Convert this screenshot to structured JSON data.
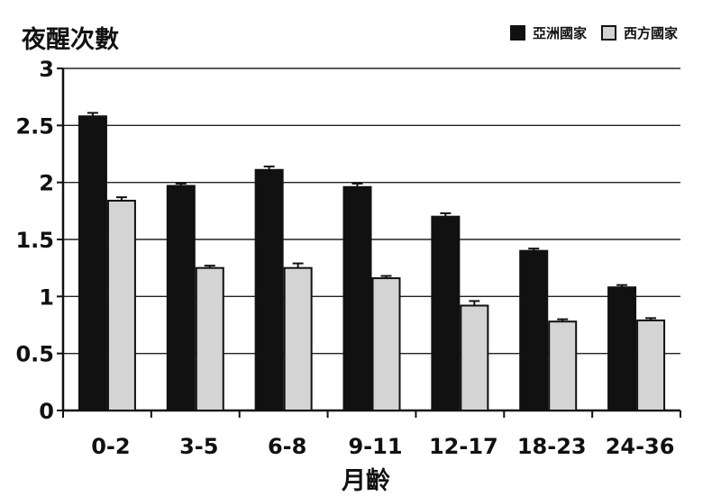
{
  "chart_data": {
    "type": "bar",
    "ylabel": "夜醒次數",
    "xlabel": "月齡",
    "categories": [
      "0-2",
      "3-5",
      "6-8",
      "9-11",
      "12-17",
      "18-23",
      "24-36"
    ],
    "ylim": [
      0,
      3
    ],
    "yticks": [
      "0",
      "0.5",
      "1",
      "1.5",
      "2",
      "2.5",
      "3"
    ],
    "grid": true,
    "legend_position": "top-right",
    "series": [
      {
        "name": "亞洲國家",
        "color": "#111111",
        "values": [
          2.58,
          1.97,
          2.11,
          1.96,
          1.7,
          1.4,
          1.08
        ],
        "errors": [
          0.03,
          0.02,
          0.03,
          0.03,
          0.03,
          0.02,
          0.02
        ]
      },
      {
        "name": "西方國家",
        "color": "#d4d4d4",
        "values": [
          1.84,
          1.25,
          1.25,
          1.16,
          0.92,
          0.78,
          0.79
        ],
        "errors": [
          0.03,
          0.02,
          0.04,
          0.02,
          0.04,
          0.02,
          0.02
        ]
      }
    ]
  }
}
